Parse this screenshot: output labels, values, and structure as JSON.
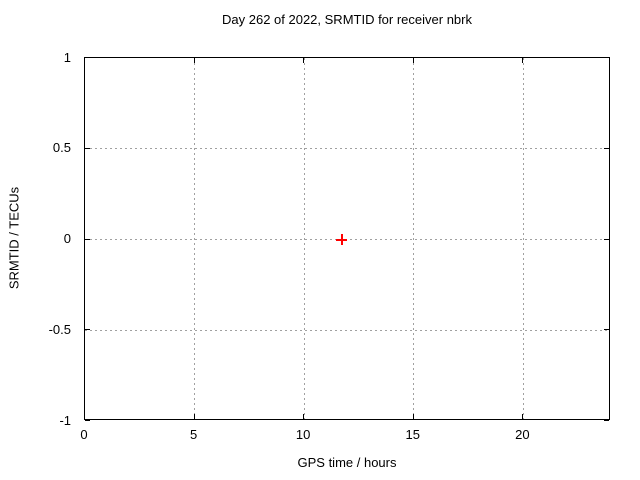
{
  "chart_data": {
    "type": "scatter",
    "title": "Day 262 of 2022, SRMTID for receiver nbrk",
    "xlabel": "GPS time / hours",
    "ylabel": "SRMTID / TECUs",
    "xlim": [
      0,
      24
    ],
    "ylim": [
      -1,
      1
    ],
    "xticks": [
      0,
      5,
      10,
      15,
      20
    ],
    "yticks": [
      1,
      0.5,
      0,
      -0.5,
      -1
    ],
    "grid": true,
    "legend": "none",
    "series": [
      {
        "name": "SRMTID",
        "marker": "plus",
        "color": "#ff0000",
        "points": [
          {
            "x": 11.7,
            "y": 0.0
          }
        ]
      }
    ]
  },
  "colors": {
    "background": "#ffffff",
    "axis": "#000000",
    "grid": "#a0a0a0",
    "text": "#000000"
  }
}
